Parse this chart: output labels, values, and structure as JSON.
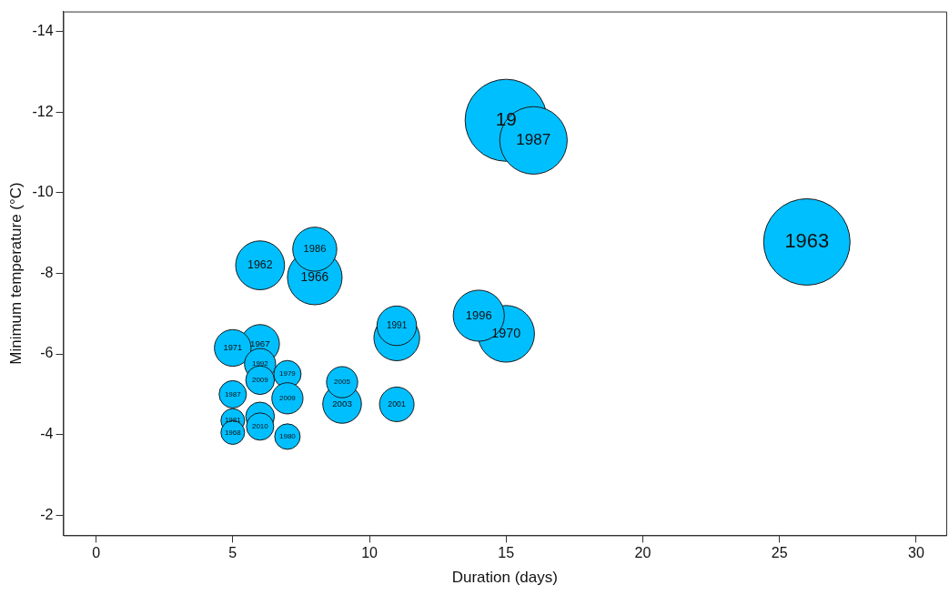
{
  "chart_data": {
    "type": "bubble",
    "xlabel": "Duration (days)",
    "ylabel": "Minimum temperature (°C)",
    "x": [
      26,
      15,
      16,
      15,
      14,
      11,
      11,
      11,
      9,
      9,
      8,
      8,
      6,
      6,
      5,
      6,
      6,
      7,
      7,
      5,
      5,
      5,
      6,
      6,
      7
    ],
    "values": [
      -8.78,
      -11.8,
      -11.3,
      -6.5,
      -6.95,
      -6.4,
      -6.7,
      -4.75,
      -4.76,
      -5.3,
      -7.9,
      -8.6,
      -8.2,
      -6.25,
      -6.15,
      -5.75,
      -5.35,
      -5.5,
      -4.9,
      -5.0,
      -4.35,
      -4.05,
      -4.45,
      -4.2,
      -3.95
    ],
    "sizes": [
      1,
      0.9,
      0.61,
      0.43,
      0.35,
      0.28,
      0.21,
      0.16,
      0.2,
      0.13,
      0.4,
      0.26,
      0.32,
      0.2,
      0.18,
      0.13,
      0.11,
      0.1,
      0.13,
      0.1,
      0.075,
      0.075,
      0.11,
      0.1,
      0.087
    ],
    "color": "#00bfff",
    "xlim": [
      -1.2,
      31.1
    ],
    "xticks": [
      0,
      5,
      10,
      15,
      20,
      25,
      30
    ],
    "ylim": [
      -1.5,
      -14.5
    ],
    "yticks": [
      -14,
      -12,
      -10,
      -8,
      -6,
      -4,
      -2
    ],
    "annotations": [
      {
        "text": "1963",
        "x": 26,
        "y": -8.78
      },
      {
        "text": "19",
        "x": 15,
        "y": -11.8
      },
      {
        "text": "1987",
        "x": 16,
        "y": -11.3
      },
      {
        "text": "1970",
        "x": 15,
        "y": -6.5
      },
      {
        "text": "1996",
        "x": 14,
        "y": -6.95
      },
      {
        "text": "1991",
        "x": 11,
        "y": -6.7
      },
      {
        "text": "2001",
        "x": 11,
        "y": -4.75
      },
      {
        "text": "2003",
        "x": 9,
        "y": -4.76
      },
      {
        "text": "2005",
        "x": 9,
        "y": -5.3
      },
      {
        "text": "1966",
        "x": 8,
        "y": -7.9
      },
      {
        "text": "1986",
        "x": 8,
        "y": -8.6
      },
      {
        "text": "1962",
        "x": 6,
        "y": -8.2
      },
      {
        "text": "1967",
        "x": 6,
        "y": -6.25
      },
      {
        "text": "1971",
        "x": 5,
        "y": -6.15
      },
      {
        "text": "1992",
        "x": 6,
        "y": -5.75
      },
      {
        "text": "2009",
        "x": 6,
        "y": -5.35
      },
      {
        "text": "1979",
        "x": 7,
        "y": -5.5
      },
      {
        "text": "2009",
        "x": 7,
        "y": -4.9
      },
      {
        "text": "1987",
        "x": 5,
        "y": -5.0
      },
      {
        "text": "1981",
        "x": 5,
        "y": -4.35
      },
      {
        "text": "1968",
        "x": 5,
        "y": -4.05
      },
      {
        "text": "2010",
        "x": 6,
        "y": -4.2
      },
      {
        "text": "1980",
        "x": 7,
        "y": -3.95
      }
    ]
  }
}
